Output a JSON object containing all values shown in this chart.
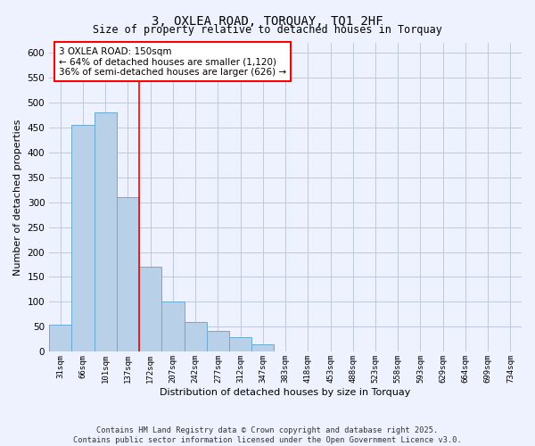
{
  "title": "3, OXLEA ROAD, TORQUAY, TQ1 2HF",
  "subtitle": "Size of property relative to detached houses in Torquay",
  "xlabel": "Distribution of detached houses by size in Torquay",
  "ylabel": "Number of detached properties",
  "categories": [
    "31sqm",
    "66sqm",
    "101sqm",
    "137sqm",
    "172sqm",
    "207sqm",
    "242sqm",
    "277sqm",
    "312sqm",
    "347sqm",
    "383sqm",
    "418sqm",
    "453sqm",
    "488sqm",
    "523sqm",
    "558sqm",
    "593sqm",
    "629sqm",
    "664sqm",
    "699sqm",
    "734sqm"
  ],
  "values": [
    55,
    455,
    480,
    310,
    170,
    100,
    60,
    42,
    30,
    15,
    0,
    0,
    0,
    0,
    0,
    0,
    0,
    0,
    0,
    0,
    0
  ],
  "bar_color": "#b8d0e8",
  "bar_edge_color": "#6aaad4",
  "annotation_text": "3 OXLEA ROAD: 150sqm\n← 64% of detached houses are smaller (1,120)\n36% of semi-detached houses are larger (626) →",
  "annotation_box_color": "white",
  "annotation_box_edge_color": "red",
  "red_line_color": "red",
  "background_color": "#eef2ff",
  "grid_color": "#c0c8e0",
  "footer_line1": "Contains HM Land Registry data © Crown copyright and database right 2025.",
  "footer_line2": "Contains public sector information licensed under the Open Government Licence v3.0.",
  "ylim": [
    0,
    620
  ],
  "yticks": [
    0,
    50,
    100,
    150,
    200,
    250,
    300,
    350,
    400,
    450,
    500,
    550,
    600
  ]
}
